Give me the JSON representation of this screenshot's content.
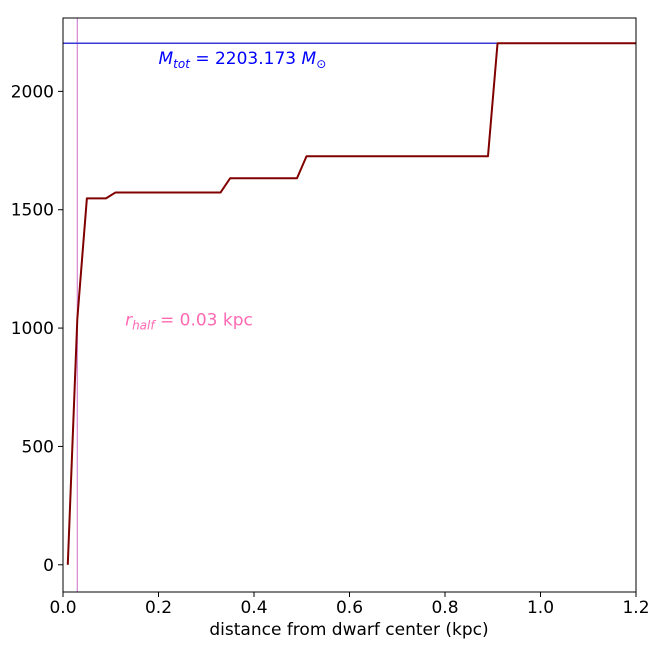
{
  "chart_data": {
    "type": "line",
    "xlabel": "distance from dwarf center (kpc)",
    "ylabel": "",
    "xlim": [
      0.0,
      1.2
    ],
    "ylim": [
      -115,
      2310
    ],
    "x_ticks": [
      "0.0",
      "0.2",
      "0.4",
      "0.6",
      "0.8",
      "1.0",
      "1.2"
    ],
    "y_ticks": [
      "0",
      "500",
      "1000",
      "1500",
      "2000"
    ],
    "grid": false,
    "series": [
      {
        "color": "#800000",
        "x": [
          0.01,
          0.03,
          0.05,
          0.07,
          0.09,
          0.11,
          0.13,
          0.33,
          0.35,
          0.49,
          0.51,
          0.89,
          0.91,
          1.2
        ],
        "y": [
          0,
          1040,
          1548,
          1548,
          1548,
          1573,
          1573,
          1573,
          1633,
          1633,
          1726,
          1726,
          2203.173,
          2203.173
        ]
      }
    ],
    "hlines": [
      {
        "y": 2203.173,
        "color": "#3a3ad6"
      }
    ],
    "vlines": [
      {
        "x": 0.03,
        "color": "#d68fd6"
      }
    ],
    "annotations": [
      {
        "x": 0.2,
        "y": 2115,
        "color": "#0000ff",
        "parts": [
          "M",
          "tot",
          " = 2203.173 ",
          "M",
          "⊙"
        ]
      },
      {
        "x": 0.13,
        "y": 1010,
        "color": "#ff69b4",
        "parts": [
          "r",
          "half",
          " = 0.03 kpc"
        ]
      }
    ]
  }
}
